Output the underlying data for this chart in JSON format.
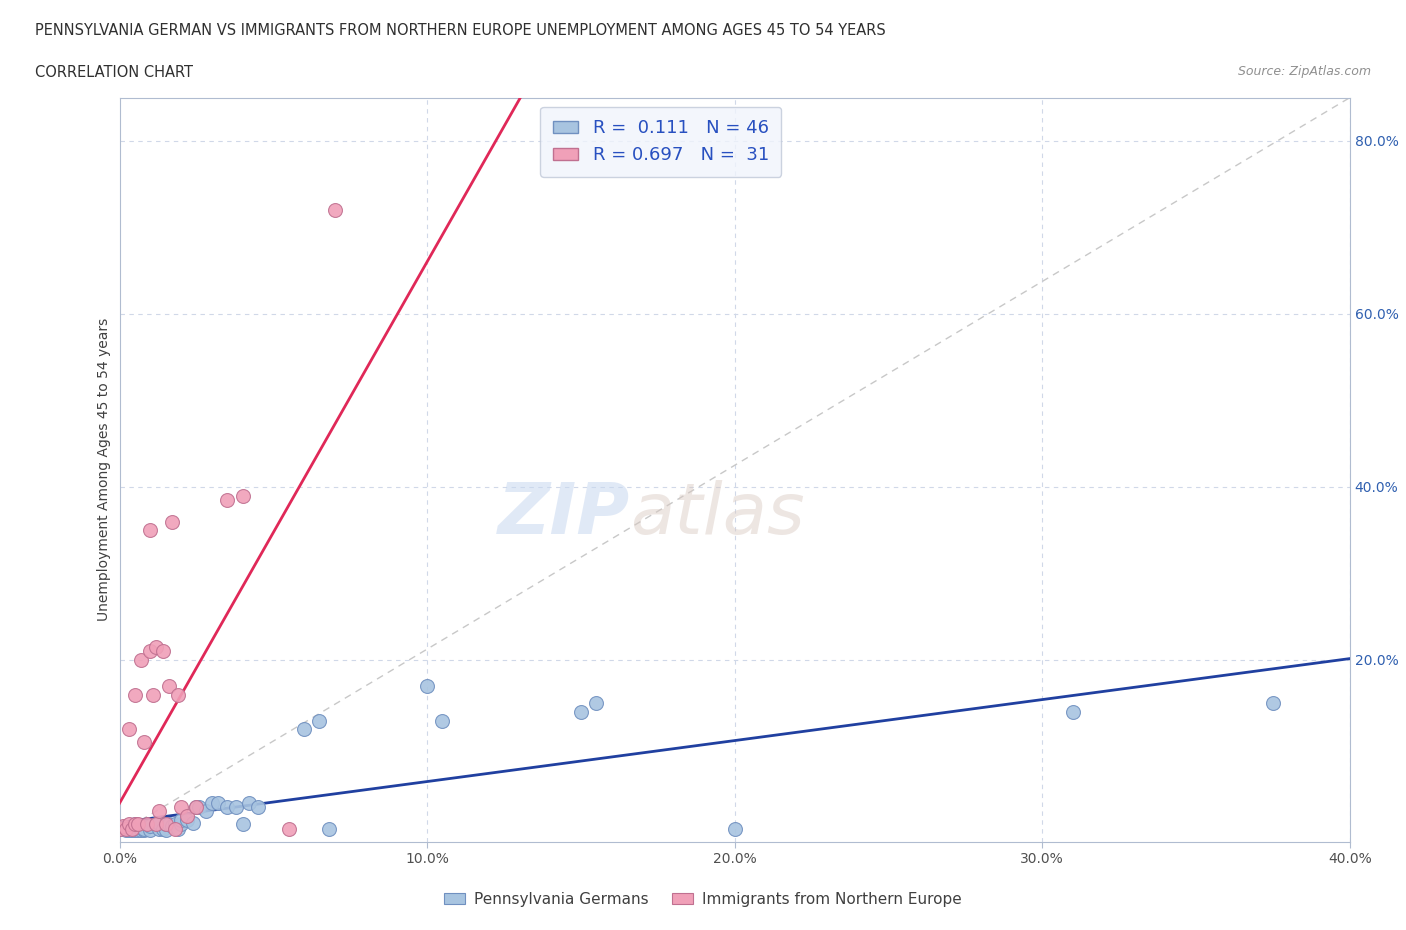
{
  "title_line1": "PENNSYLVANIA GERMAN VS IMMIGRANTS FROM NORTHERN EUROPE UNEMPLOYMENT AMONG AGES 45 TO 54 YEARS",
  "title_line2": "CORRELATION CHART",
  "source": "Source: ZipAtlas.com",
  "ylabel": "Unemployment Among Ages 45 to 54 years",
  "xlim": [
    0.0,
    0.4
  ],
  "ylim": [
    -0.01,
    0.85
  ],
  "xtick_labels": [
    "0.0%",
    "10.0%",
    "20.0%",
    "30.0%",
    "40.0%"
  ],
  "xtick_values": [
    0.0,
    0.1,
    0.2,
    0.3,
    0.4
  ],
  "ytick_labels": [
    "20.0%",
    "40.0%",
    "60.0%",
    "80.0%"
  ],
  "ytick_values": [
    0.2,
    0.4,
    0.6,
    0.8
  ],
  "blue_color": "#a8c4e0",
  "pink_color": "#f0a0b8",
  "blue_line_color": "#2040a0",
  "pink_line_color": "#e02858",
  "diagonal_color": "#c8c8c8",
  "R_blue": 0.111,
  "N_blue": 46,
  "R_pink": 0.697,
  "N_pink": 31,
  "blue_scatter_x": [
    0.0,
    0.002,
    0.003,
    0.004,
    0.005,
    0.005,
    0.006,
    0.007,
    0.008,
    0.008,
    0.01,
    0.01,
    0.012,
    0.013,
    0.013,
    0.014,
    0.015,
    0.015,
    0.016,
    0.017,
    0.018,
    0.019,
    0.02,
    0.02,
    0.022,
    0.024,
    0.025,
    0.026,
    0.028,
    0.03,
    0.032,
    0.035,
    0.038,
    0.04,
    0.042,
    0.045,
    0.06,
    0.065,
    0.068,
    0.1,
    0.105,
    0.15,
    0.155,
    0.2,
    0.31,
    0.375
  ],
  "blue_scatter_y": [
    0.005,
    0.003,
    0.004,
    0.003,
    0.003,
    0.01,
    0.004,
    0.003,
    0.004,
    0.005,
    0.003,
    0.008,
    0.01,
    0.005,
    0.012,
    0.005,
    0.003,
    0.01,
    0.01,
    0.008,
    0.01,
    0.005,
    0.01,
    0.015,
    0.015,
    0.012,
    0.03,
    0.03,
    0.025,
    0.035,
    0.035,
    0.03,
    0.03,
    0.01,
    0.035,
    0.03,
    0.12,
    0.13,
    0.005,
    0.17,
    0.13,
    0.14,
    0.15,
    0.005,
    0.14,
    0.15
  ],
  "pink_scatter_x": [
    0.0,
    0.001,
    0.002,
    0.003,
    0.003,
    0.004,
    0.005,
    0.005,
    0.006,
    0.007,
    0.008,
    0.009,
    0.01,
    0.01,
    0.011,
    0.012,
    0.012,
    0.013,
    0.014,
    0.015,
    0.016,
    0.017,
    0.018,
    0.019,
    0.02,
    0.022,
    0.025,
    0.035,
    0.04,
    0.055,
    0.07
  ],
  "pink_scatter_y": [
    0.005,
    0.008,
    0.005,
    0.01,
    0.12,
    0.005,
    0.01,
    0.16,
    0.01,
    0.2,
    0.105,
    0.01,
    0.21,
    0.35,
    0.16,
    0.01,
    0.215,
    0.025,
    0.21,
    0.01,
    0.17,
    0.36,
    0.005,
    0.16,
    0.03,
    0.02,
    0.03,
    0.385,
    0.39,
    0.005,
    0.72
  ],
  "watermark_zip": "ZIP",
  "watermark_atlas": "atlas",
  "background_color": "#ffffff",
  "grid_color": "#d0d8e8",
  "legend_box_color": "#f0f4fc"
}
